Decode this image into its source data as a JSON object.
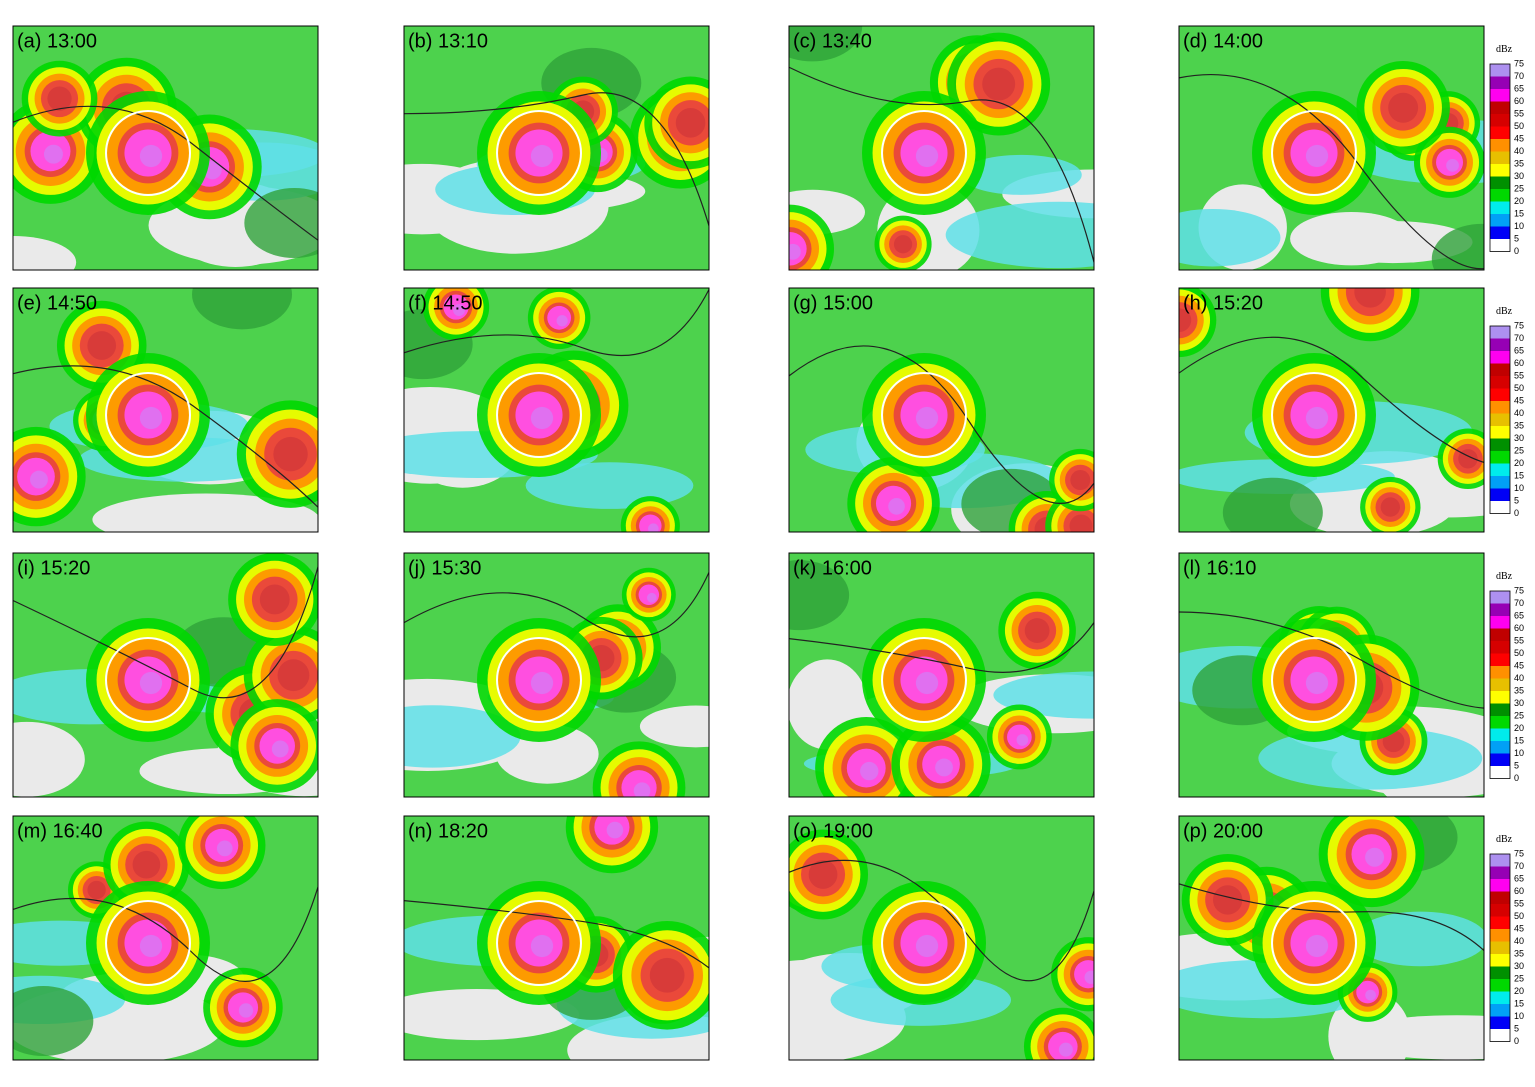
{
  "panels": [
    "(a) 13:00",
    "(b) 13:10",
    "(c) 13:40",
    "(d) 14:00",
    "(e) 14:50",
    "(f) 14:50",
    "(g) 15:00",
    "(h) 15:20",
    "(i) 15:20",
    "(j) 15:30",
    "(k) 16:00",
    "(l) 16:10",
    "(m) 16:40",
    "(n) 18:20",
    "(o) 19:00",
    "(p) 20:00"
  ],
  "colorbar": {
    "unit": "dBz",
    "ticks": [
      75,
      70,
      65,
      60,
      55,
      50,
      45,
      40,
      35,
      30,
      25,
      20,
      15,
      10,
      5,
      0
    ],
    "colors": [
      "#ad90f0",
      "#9600b4",
      "#ff00f0",
      "#c00000",
      "#d60000",
      "#ff0000",
      "#ff9000",
      "#e7c000",
      "#ffff00",
      "#009000",
      "#00d800",
      "#00ecec",
      "#01a0f6",
      "#0000f6",
      "#ffffff"
    ]
  }
}
